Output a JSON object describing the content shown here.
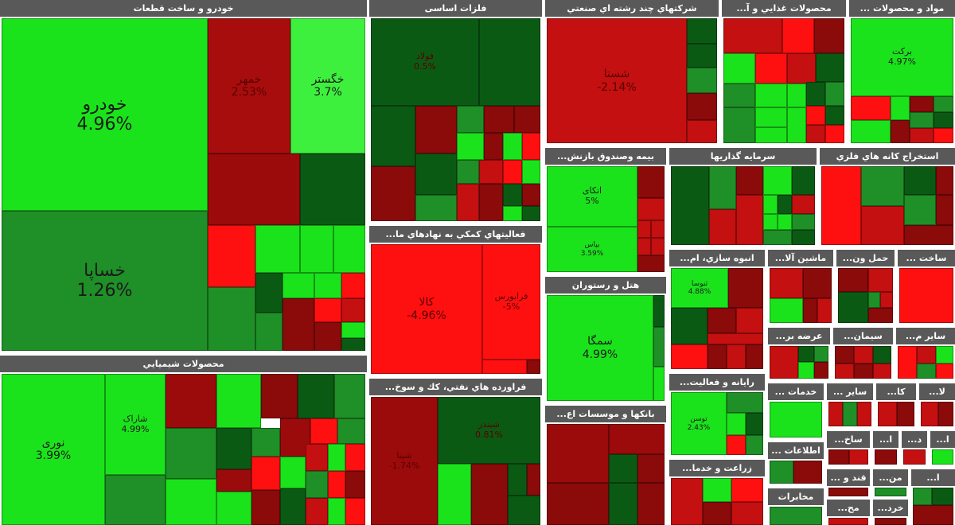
{
  "colors": {
    "bright_green": "#1be31b",
    "green": "#2cb42c",
    "dark_green": "#0a5e12",
    "dark_red": "#8b0a0a",
    "red": "#c41010",
    "bright_red": "#ff0f0f",
    "header_bg": "#595959"
  },
  "sectors": {
    "khodro": {
      "title": "خودرو و ساخت قطعات",
      "tiles": [
        {
          "name": "خودرو",
          "pct": "4.96%"
        },
        {
          "name": "خساپا",
          "pct": "1.26%"
        },
        {
          "name": "خگستر",
          "pct": "3.7%"
        },
        {
          "name": "خمهر",
          "pct": "2.53%"
        }
      ]
    },
    "felezat": {
      "title": "فلزات اساسی",
      "tiles": [
        {
          "name": "فولاد",
          "pct": "0.5%"
        }
      ]
    },
    "chand_reshte": {
      "title": "شرکتهاي چند رشته اي صنعتي",
      "tiles": [
        {
          "name": "شستا",
          "pct": "-2.14%"
        }
      ]
    },
    "ghazaei": {
      "title": "محصولات غذايي و آ..."
    },
    "mavad": {
      "title": "مواد و محصولات ...",
      "tiles": [
        {
          "name": "برکت",
          "pct": "4.97%"
        }
      ]
    },
    "bime": {
      "title": "بيمه وصندوق بازنش...",
      "tiles": [
        {
          "name": "اتکای",
          "pct": "5%"
        },
        {
          "name": "بپاس",
          "pct": "3.59%"
        }
      ]
    },
    "sarmayegozari": {
      "title": "سرمايه گذاريها"
    },
    "estekhraj": {
      "title": "استخراج كانه هاي فلزي"
    },
    "faaliyat_komaki": {
      "title": "فعاليتهاي كمكي به نهادهاي ما...",
      "tiles": [
        {
          "name": "کالا",
          "pct": "-4.96%"
        },
        {
          "name": "فرابورس",
          "pct": "-5%"
        }
      ]
    },
    "hotel": {
      "title": "هتل و رستوران",
      "tiles": [
        {
          "name": "سمگا",
          "pct": "4.99%"
        }
      ]
    },
    "anbooh": {
      "title": "انبوه سازي، ام...",
      "tiles": [
        {
          "name": "ثنوسا",
          "pct": "4.88%"
        }
      ]
    },
    "mashin": {
      "title": "ماشين آلا..."
    },
    "haml": {
      "title": "حمل ون..."
    },
    "sakht": {
      "title": "ساخت ..."
    },
    "arzeh": {
      "title": "عرضه بر..."
    },
    "siman": {
      "title": "سيمان..."
    },
    "sayer_m": {
      "title": "ساير م..."
    },
    "shimiyaei": {
      "title": "محصولات شيميايي",
      "tiles": [
        {
          "name": "نوری",
          "pct": "3.99%"
        },
        {
          "name": "شاراک",
          "pct": "4.99%"
        }
      ]
    },
    "faravarde": {
      "title": "فراورده هاي نفتي، كك و سوخ...",
      "tiles": [
        {
          "name": "شپنا",
          "pct": "-1.74%"
        },
        {
          "name": "شبندر",
          "pct": "0.81%"
        }
      ]
    },
    "bankha": {
      "title": "بانكها و موسسات اع..."
    },
    "rayane": {
      "title": "رايانه و فعاليت...",
      "tiles": [
        {
          "name": "توسن",
          "pct": "2.43%"
        }
      ]
    },
    "zeraat": {
      "title": "زراعت و خدما..."
    },
    "khadamat": {
      "title": "خدمات ..."
    },
    "ettelaat": {
      "title": "اطلاعات ..."
    },
    "mokhaberat": {
      "title": "مخابرات"
    },
    "sayer": {
      "title": "ساير ..."
    },
    "ka": {
      "title": "كا..."
    },
    "la": {
      "title": "لا..."
    },
    "sakh": {
      "title": "ساخ..."
    },
    "d1": {
      "title": "ا..."
    },
    "d2": {
      "title": "د..."
    },
    "d3": {
      "title": "ا..."
    },
    "ghand": {
      "title": "قند و ..."
    },
    "mn": {
      "title": "من..."
    },
    "d4": {
      "title": "ا..."
    },
    "mah": {
      "title": "مح..."
    },
    "khord": {
      "title": "خرد..."
    }
  }
}
